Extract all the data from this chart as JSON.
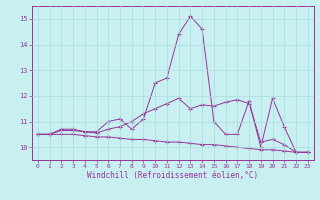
{
  "xlabel": "Windchill (Refroidissement éolien,°C)",
  "background_color": "#c8f0f0",
  "line_color": "#993399",
  "xlim": [
    -0.5,
    23.5
  ],
  "ylim": [
    9.5,
    15.5
  ],
  "xticks": [
    0,
    1,
    2,
    3,
    4,
    5,
    6,
    7,
    8,
    9,
    10,
    11,
    12,
    13,
    14,
    15,
    16,
    17,
    18,
    19,
    20,
    21,
    22,
    23
  ],
  "yticks": [
    10,
    11,
    12,
    13,
    14,
    15
  ],
  "grid_color": "#aadddd",
  "series1_x": [
    0,
    1,
    2,
    3,
    4,
    5,
    6,
    7,
    8,
    9,
    10,
    11,
    12,
    13,
    14,
    15,
    16,
    17,
    18,
    19,
    20,
    21,
    22,
    23
  ],
  "series1_y": [
    10.5,
    10.5,
    10.7,
    10.7,
    10.6,
    10.6,
    11.0,
    11.1,
    10.7,
    11.1,
    12.5,
    12.7,
    14.4,
    15.1,
    14.6,
    11.0,
    10.5,
    10.5,
    11.8,
    10.0,
    11.9,
    10.8,
    9.8,
    9.8
  ],
  "series2_x": [
    0,
    1,
    2,
    3,
    4,
    5,
    6,
    7,
    8,
    9,
    10,
    11,
    12,
    13,
    14,
    15,
    16,
    17,
    18,
    19,
    20,
    21,
    22,
    23
  ],
  "series2_y": [
    10.5,
    10.5,
    10.65,
    10.65,
    10.6,
    10.55,
    10.7,
    10.8,
    11.0,
    11.3,
    11.5,
    11.7,
    11.9,
    11.5,
    11.65,
    11.6,
    11.75,
    11.85,
    11.7,
    10.2,
    10.3,
    10.1,
    9.8,
    9.8
  ],
  "series3_x": [
    0,
    1,
    2,
    3,
    4,
    5,
    6,
    7,
    8,
    9,
    10,
    11,
    12,
    13,
    14,
    15,
    16,
    17,
    18,
    19,
    20,
    21,
    22,
    23
  ],
  "series3_y": [
    10.5,
    10.5,
    10.5,
    10.5,
    10.45,
    10.4,
    10.4,
    10.35,
    10.3,
    10.3,
    10.25,
    10.2,
    10.2,
    10.15,
    10.1,
    10.1,
    10.05,
    10.0,
    9.95,
    9.9,
    9.9,
    9.85,
    9.8,
    9.8
  ]
}
